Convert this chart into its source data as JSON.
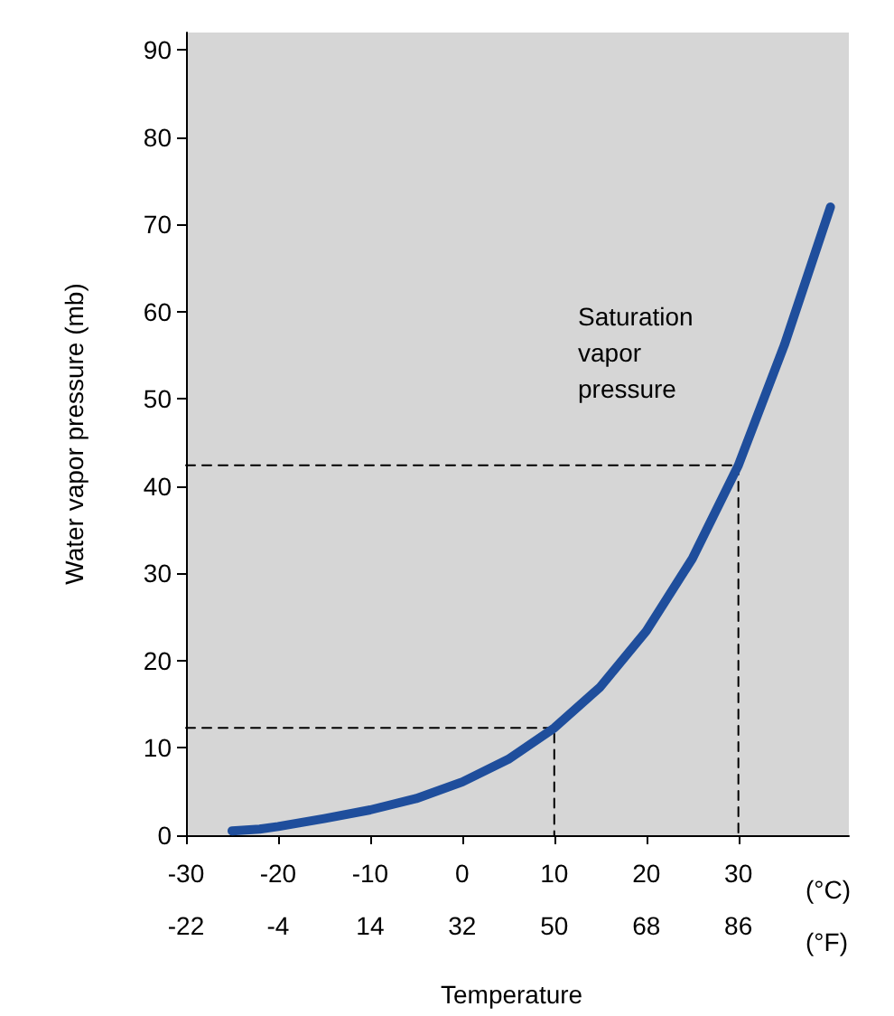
{
  "chart_data": {
    "type": "line",
    "xlabel": "Temperature",
    "ylabel": "Water vapor pressure (mb)",
    "xlim": [
      -30,
      42
    ],
    "xticks": [
      -30,
      -20,
      -10,
      0,
      10,
      20,
      30
    ],
    "x2lim": [
      -22,
      107.6
    ],
    "x2ticks": [
      -22,
      -4,
      14,
      32,
      50,
      68,
      86
    ],
    "ylim": [
      0,
      92
    ],
    "yticks": [
      0,
      10,
      20,
      30,
      40,
      50,
      60,
      70,
      80,
      90
    ],
    "grid": false,
    "marker": "none",
    "annotations": [
      "(°C)",
      "(°F)",
      "Saturation\nvapor\npressure"
    ],
    "series": [
      {
        "color": "#1f4e9c",
        "x": [
          -25,
          -22,
          -20,
          -15,
          -10,
          -5,
          0,
          5,
          10,
          15,
          20,
          25,
          30,
          35,
          40
        ],
        "values": [
          0.5,
          0.7,
          1,
          1.9,
          2.9,
          4.2,
          6.1,
          8.7,
          12.3,
          17,
          23.4,
          31.7,
          42.4,
          56.2,
          72
        ]
      },
      {
        "color": "#000000",
        "line_style": "dashed",
        "x": [
          -30,
          10,
          10
        ],
        "values": [
          12.3,
          12.3,
          0
        ]
      },
      {
        "color": "#000000",
        "line_style": "dashed",
        "x": [
          -30,
          30,
          30
        ],
        "values": [
          42.4,
          42.4,
          0
        ]
      }
    ]
  }
}
